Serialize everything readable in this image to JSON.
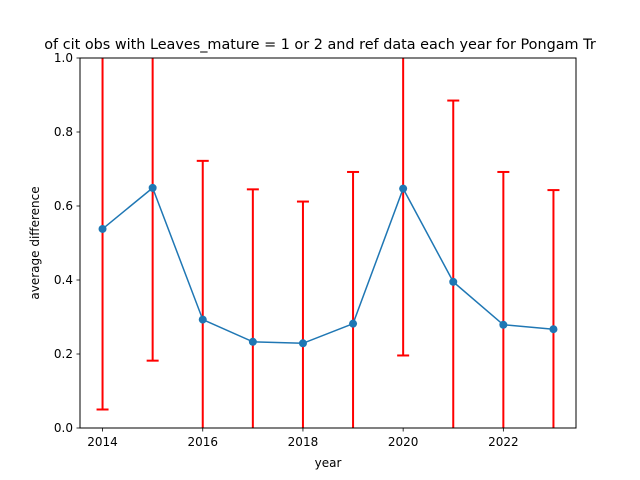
{
  "chart_data": {
    "type": "line",
    "title": "of cit obs with Leaves_mature = 1 or 2 and ref data each year for Pongam Tr",
    "xlabel": "year",
    "ylabel": "average difference",
    "xlim": [
      2013.55,
      2023.45
    ],
    "ylim": [
      0.0,
      1.0
    ],
    "x_ticks": [
      2014,
      2016,
      2018,
      2020,
      2022
    ],
    "y_ticks": [
      0.0,
      0.2,
      0.4,
      0.6,
      0.8,
      1.0
    ],
    "x_tick_labels": [
      "2014",
      "2016",
      "2018",
      "2020",
      "2022"
    ],
    "y_tick_labels": [
      "0.0",
      "0.2",
      "0.4",
      "0.6",
      "0.8",
      "1.0"
    ],
    "grid": false,
    "legend": "none",
    "line_color": "#1f77b4",
    "error_color": "#ff0000",
    "x": [
      2014,
      2015,
      2016,
      2017,
      2018,
      2019,
      2020,
      2021,
      2022,
      2023
    ],
    "y": [
      0.538,
      0.649,
      0.293,
      0.233,
      0.229,
      0.282,
      0.647,
      0.395,
      0.279,
      0.267
    ],
    "yerr_lower": [
      0.05,
      0.182,
      0.0,
      0.0,
      0.0,
      0.0,
      0.196,
      0.0,
      0.0,
      0.0
    ],
    "yerr_upper": [
      1.0,
      1.0,
      0.722,
      0.645,
      0.612,
      0.692,
      1.0,
      0.885,
      0.692,
      0.643
    ],
    "cap_top_visible": [
      false,
      false,
      true,
      true,
      true,
      true,
      false,
      true,
      true,
      true
    ],
    "cap_bottom_visible": [
      true,
      true,
      false,
      false,
      false,
      false,
      true,
      false,
      false,
      false
    ]
  }
}
